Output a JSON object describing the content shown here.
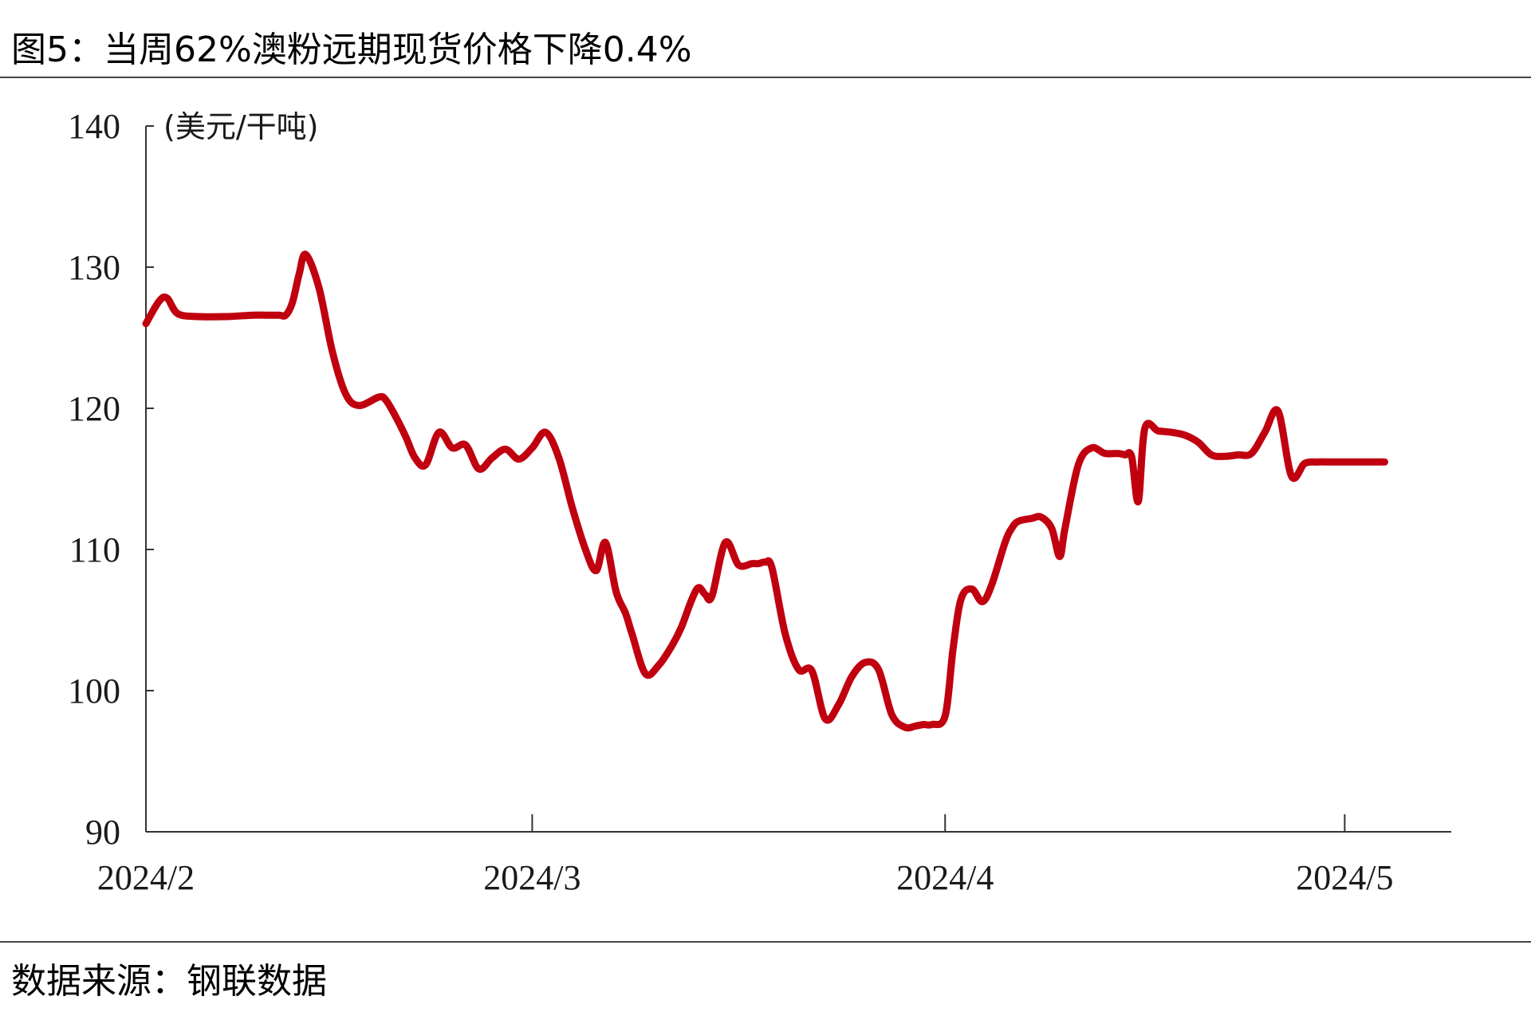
{
  "title": "图5：当周62%澳粉远期现货价格下降0.4%",
  "source": "数据来源：钢联数据",
  "chart_data": {
    "type": "line",
    "title": "图5：当周62%澳粉远期现货价格下降0.4%",
    "ylabel": "(美元/干吨)",
    "xlabel": "",
    "ylim": [
      90,
      140
    ],
    "yticks": [
      140,
      130,
      120,
      110,
      100,
      90
    ],
    "xlim": [
      0,
      98
    ],
    "xticks": [
      {
        "pos": 0,
        "label": "2024/2"
      },
      {
        "pos": 29,
        "label": "2024/3"
      },
      {
        "pos": 60,
        "label": "2024/4"
      },
      {
        "pos": 90,
        "label": "2024/5"
      }
    ],
    "grid": false,
    "line_color": "#c0000f",
    "series": [
      {
        "name": "",
        "x": [
          0,
          1,
          1.6,
          2.4,
          4,
          6,
          8,
          9,
          10,
          10.5,
          11,
          11.5,
          12,
          13,
          14,
          15,
          16,
          17.5,
          18,
          18.7,
          19.5,
          20.2,
          21,
          22,
          23,
          24,
          25,
          26,
          27,
          28,
          29,
          30,
          31,
          32,
          33,
          33.8,
          34.5,
          35.3,
          36,
          36.5,
          37.5,
          38.5,
          39.5,
          40.2,
          41,
          41.5,
          42,
          42.5,
          43.5,
          44.5,
          45.5,
          46,
          46.5,
          47,
          48,
          49,
          50,
          51,
          52,
          53,
          54,
          55,
          56,
          57,
          57.8,
          58.4,
          59,
          60,
          60.6,
          61.2,
          62,
          62.8,
          63.5,
          64.5,
          65,
          65.5,
          66.5,
          67.2,
          68,
          68.6,
          69,
          70,
          71,
          72,
          73,
          73.5,
          74,
          74.5,
          75,
          76,
          77,
          78,
          79,
          80,
          81,
          82,
          83,
          84,
          85,
          86,
          87,
          88,
          89,
          90,
          91,
          92,
          93
        ],
        "values": [
          126.0,
          127.6,
          127.8,
          126.7,
          126.5,
          126.5,
          126.6,
          126.6,
          126.6,
          126.6,
          127.5,
          129.5,
          130.9,
          128.5,
          124,
          121,
          120.2,
          120.8,
          120.6,
          119.5,
          118,
          116.5,
          116.0,
          118.3,
          117.2,
          117.4,
          115.7,
          116.5,
          117.1,
          116.4,
          117.2,
          118.3,
          116.5,
          113,
          110,
          108.5,
          110.5,
          107,
          105.5,
          104,
          101.2,
          101.8,
          103.2,
          104.5,
          106.5,
          107.3,
          106.8,
          106.7,
          110.5,
          108.9,
          109.0,
          109.0,
          109.1,
          108.7,
          104,
          101.5,
          101.4,
          98,
          99,
          101,
          102,
          101.5,
          98.3,
          97.4,
          97.5,
          97.6,
          97.6,
          98.2,
          103,
          106.5,
          107.2,
          106.3,
          107.5,
          110.5,
          111.5,
          112,
          112.2,
          112.3,
          111.5,
          109.5,
          111.5,
          116.0,
          117.2,
          116.8,
          116.8,
          116.7,
          116.6,
          113.4,
          118.6,
          118.4,
          118.3,
          118.1,
          117.6,
          116.7,
          116.6,
          116.7,
          116.8,
          118.3,
          119.8,
          115.2,
          116.1,
          116.2,
          116.2,
          116.2,
          116.2,
          116.2,
          116.2
        ]
      }
    ]
  }
}
